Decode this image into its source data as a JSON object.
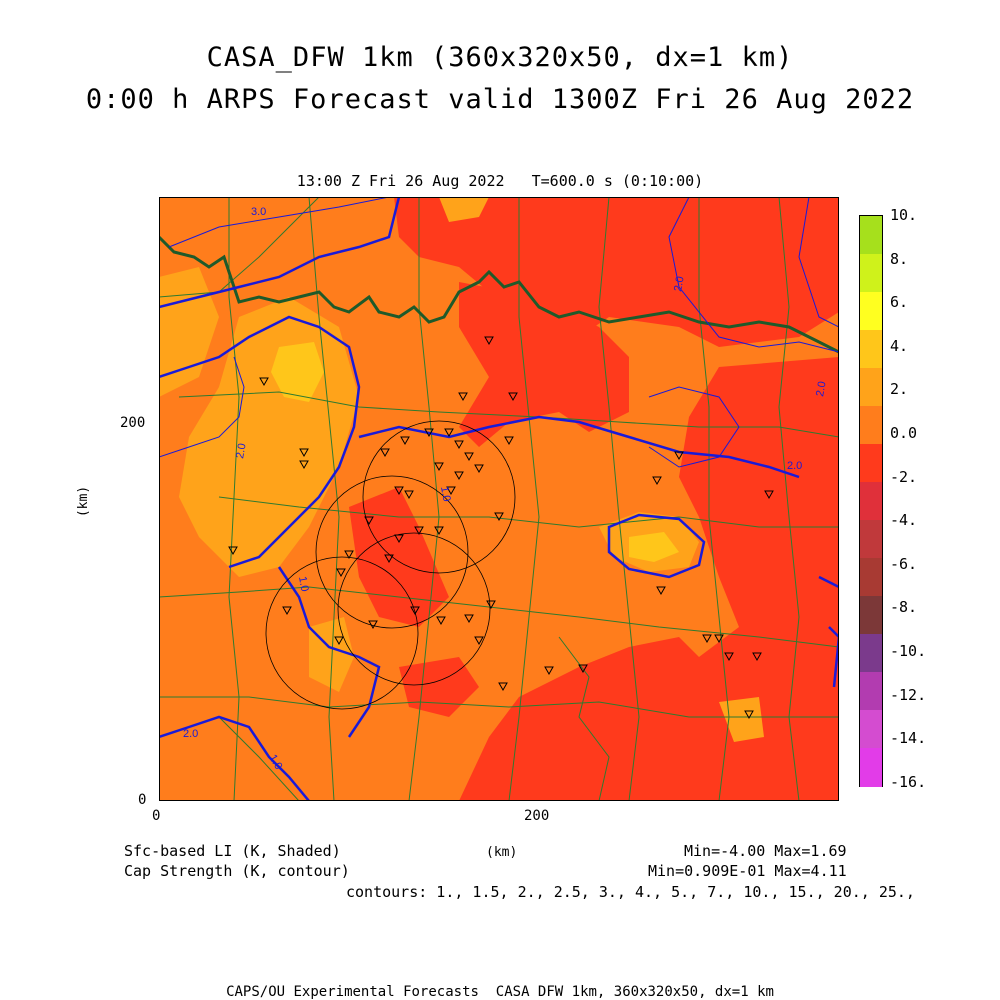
{
  "titles": {
    "line1": "CASA_DFW 1km (360x320x50, dx=1 km)",
    "line2": "0:00 h ARPS Forecast valid 1300Z Fri 26 Aug 2022",
    "subtitle": "13:00 Z Fri 26 Aug 2022   T=600.0 s (0:10:00)"
  },
  "axes": {
    "y_unit": "(km)",
    "x_unit": "(km)",
    "y_ticks": [
      "200",
      "0"
    ],
    "x_ticks": [
      "0",
      "200"
    ]
  },
  "legend": {
    "shaded": "Sfc-based LI (K, Shaded)",
    "contour": "Cap Strength (K, contour)",
    "shaded_minmax": "Min=-4.00 Max=1.69",
    "contour_minmax": "Min=0.909E-01 Max=4.11",
    "contours": "contours: 1., 1.5, 2., 2.5, 3., 4., 5., 7., 10., 15., 20., 25.,"
  },
  "colorbar": {
    "labels": [
      "10.",
      "8.",
      "6.",
      "4.",
      "2.",
      "0.0",
      "-2.",
      "-4.",
      "-6.",
      "-8.",
      "-10.",
      "-12.",
      "-14.",
      "-16."
    ],
    "colors": [
      "#a6e01c",
      "#cff21b",
      "#ffff20",
      "#ffc61a",
      "#ffa31a",
      "#ff7d1c",
      "#ff3a1c",
      "#e0303a",
      "#c0393b",
      "#a83a33",
      "#7c3838",
      "#7b3a8c",
      "#b23cb0",
      "#d44cd0",
      "#e23ce8"
    ]
  },
  "contour_labels": [
    "3.0",
    "2.0",
    "2.0",
    "2.0",
    "1.0",
    "2.0",
    "1.0",
    "1.0",
    "2.0"
  ],
  "footer": "CAPS/OU Experimental Forecasts  CASA DFW 1km, 360x320x50, dx=1 km"
}
